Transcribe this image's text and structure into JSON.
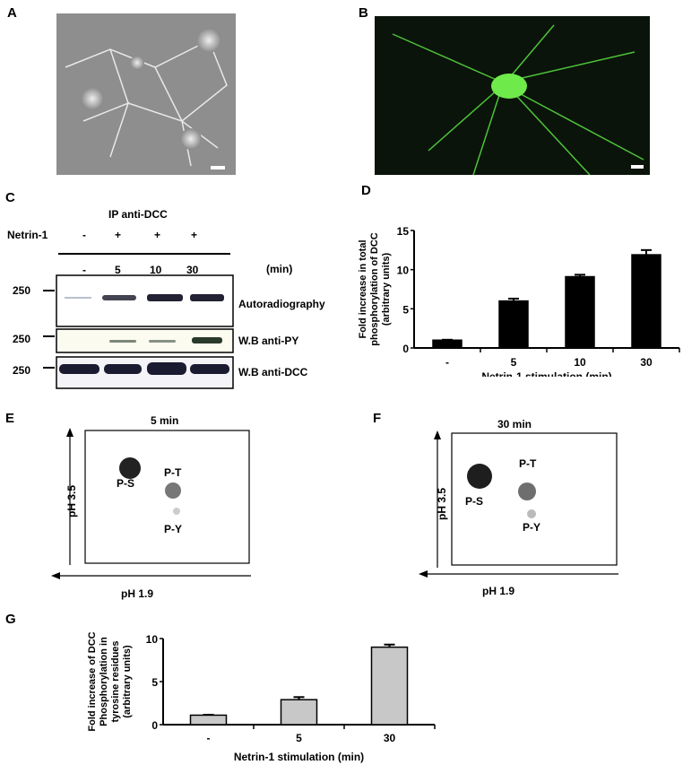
{
  "panels": {
    "a": {
      "label": "A"
    },
    "b": {
      "label": "B"
    },
    "c": {
      "label": "C",
      "ip": "IP anti-DCC",
      "netrin_label": "Netrin-1",
      "netrin": [
        "-",
        "+",
        "+",
        "+"
      ],
      "times": [
        "-",
        "5",
        "10",
        "30"
      ],
      "unit": "(min)",
      "blots": [
        {
          "marker": "250",
          "name": "Autoradiography"
        },
        {
          "marker": "250",
          "name": "W.B anti-PY"
        },
        {
          "marker": "250",
          "name": "W.B anti-DCC"
        }
      ]
    },
    "d": {
      "label": "D"
    },
    "e": {
      "label": "E",
      "title": "5 min",
      "y_axis": "pH 3.5",
      "x_axis": "pH 1.9",
      "spots": [
        "P-S",
        "P-T",
        "P-Y"
      ]
    },
    "f": {
      "label": "F",
      "title": "30 min",
      "y_axis": "pH 3.5",
      "x_axis": "pH 1.9",
      "spots": [
        "P-S",
        "P-T",
        "P-Y"
      ]
    },
    "g": {
      "label": "G"
    }
  },
  "chart_data": [
    {
      "panel": "D",
      "type": "bar",
      "categories": [
        "-",
        "5",
        "10",
        "30"
      ],
      "values": [
        1.0,
        6.0,
        9.1,
        11.9
      ],
      "error": [
        0.05,
        0.3,
        0.25,
        0.6
      ],
      "ylabel": "Fold increase in total phosphorylation of DCC (arbitrary units)",
      "xlabel": "Netrin-1 stimulation (min)",
      "ylim": [
        0,
        15
      ],
      "yticks": [
        "0",
        "5",
        "10",
        "15"
      ],
      "bar_color": "#000000",
      "grid": false
    },
    {
      "panel": "G",
      "type": "bar",
      "categories": [
        "-",
        "5",
        "30"
      ],
      "values": [
        1.1,
        2.9,
        9.0
      ],
      "error": [
        0.05,
        0.3,
        0.3
      ],
      "ylabel": "Fold increase of DCC Phosphorylation in tyrosine residues (arbitrary units)",
      "xlabel": "Netrin-1 stimulation (min)",
      "ylim": [
        0,
        10
      ],
      "yticks": [
        "0",
        "5",
        "10"
      ],
      "bar_color": "#c8c8c8",
      "grid": false
    }
  ]
}
